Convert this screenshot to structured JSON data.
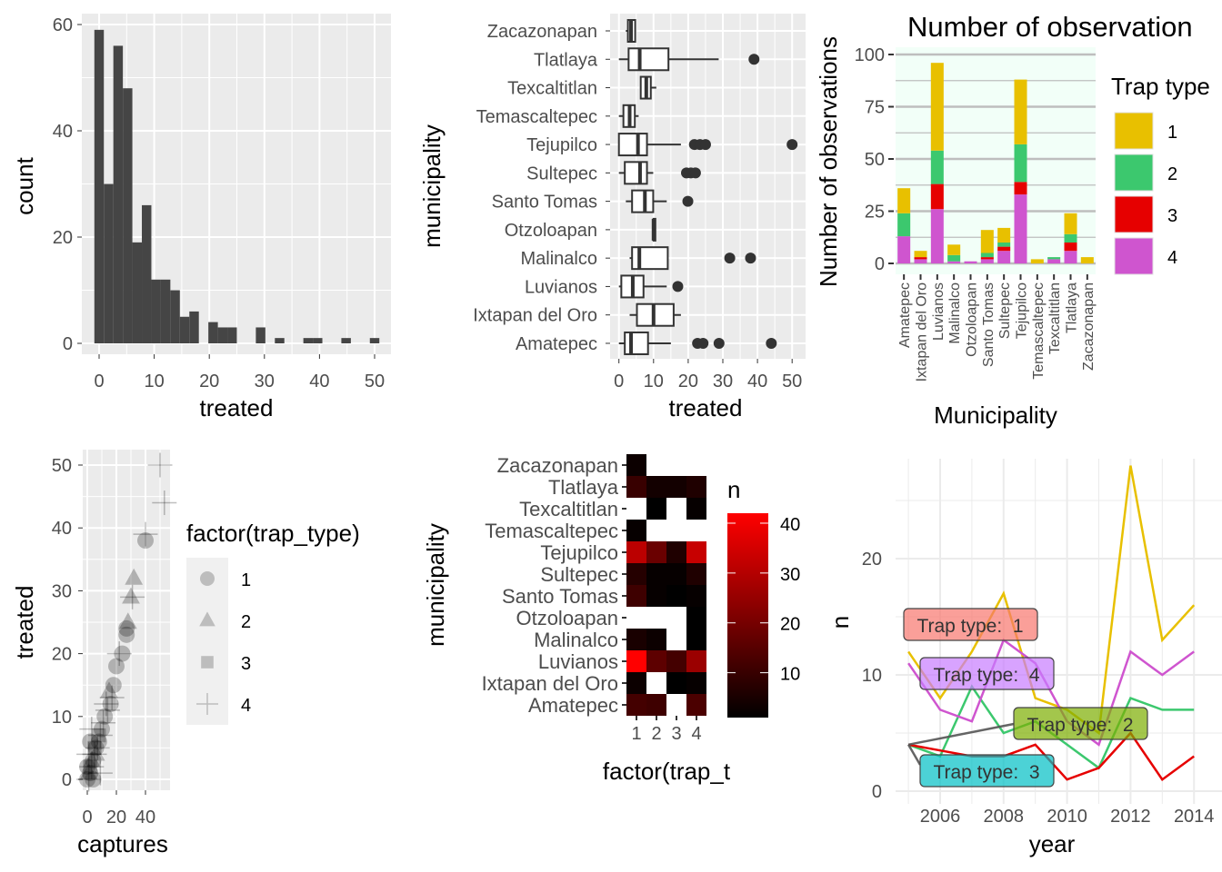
{
  "colors": {
    "panel_bg": "#EBEBEB",
    "grid": "#FFFFFF",
    "bar_fill": "#454545",
    "trap": {
      "1": "#E8C000",
      "2": "#3CC86E",
      "3": "#E60000",
      "4": "#CF55CF"
    },
    "label_fill": {
      "1": "#F8766D",
      "2": "#7CAE00",
      "3": "#00BFC4",
      "4": "#C77CFF"
    },
    "mint_bg": "#F2FFF8",
    "heat_low": "#000000",
    "heat_high": "#FF0000"
  },
  "chart_data": [
    {
      "type": "bar",
      "subtype": "histogram",
      "xlabel": "treated",
      "ylabel": "count",
      "bins": 30,
      "bin_centers_range": [
        0,
        50
      ],
      "counts": [
        59,
        30,
        56,
        48,
        19,
        26,
        12,
        12,
        10,
        5,
        6,
        0,
        4,
        3,
        3,
        0,
        0,
        3,
        0,
        1,
        0,
        0,
        1,
        1,
        0,
        0,
        1,
        0,
        0,
        1
      ],
      "xticks": [
        "0",
        "10",
        "20",
        "30",
        "40",
        "50"
      ],
      "yticks": [
        "0",
        "20",
        "40",
        "60"
      ],
      "xlim": [
        -2.5,
        53
      ],
      "ylim": [
        0,
        62
      ],
      "grid": true
    },
    {
      "type": "boxplot",
      "xlabel": "treated",
      "ylabel": "municipality",
      "xticks": [
        "0",
        "10",
        "20",
        "30",
        "40",
        "50"
      ],
      "xlim": [
        -2.5,
        53
      ],
      "grid": true,
      "groups": [
        {
          "name": "Zacazonapan",
          "stats": [
            2,
            2.6,
            3.5,
            4.7,
            4.7
          ],
          "outliers": []
        },
        {
          "name": "Tlatlaya",
          "stats": [
            0,
            2.8,
            6,
            14.3,
            28.8
          ],
          "outliers": [
            39
          ]
        },
        {
          "name": "Texcaltitlan",
          "stats": [
            6.1,
            6.3,
            7.9,
            9.2,
            10.8
          ],
          "outliers": []
        },
        {
          "name": "Temascaltepec",
          "stats": [
            0,
            1.3,
            3.1,
            4.6,
            5.7
          ],
          "outliers": []
        },
        {
          "name": "Tejupilco",
          "stats": [
            0,
            0,
            5.5,
            8.1,
            17.9
          ],
          "outliers": [
            21.8,
            23.4,
            25,
            50
          ]
        },
        {
          "name": "Sultepec",
          "stats": [
            0,
            1.7,
            6.1,
            8.1,
            9.9
          ],
          "outliers": [
            19.5,
            20.8,
            22.1
          ]
        },
        {
          "name": "Santo Tomas",
          "stats": [
            2,
            3.8,
            7.5,
            9.9,
            13.8
          ],
          "outliers": [
            19.9
          ]
        },
        {
          "name": "Otzoloapan",
          "stats": [
            10,
            10,
            10,
            10,
            10
          ],
          "outliers": []
        },
        {
          "name": "Malinalco",
          "stats": [
            3.1,
            3.8,
            5.9,
            14.1,
            14.1
          ],
          "outliers": [
            32,
            38
          ]
        },
        {
          "name": "Luvianos",
          "stats": [
            0,
            0.7,
            4,
            7.1,
            13.8
          ],
          "outliers": [
            17
          ]
        },
        {
          "name": "Ixtapan del Oro",
          "stats": [
            3.1,
            5.2,
            10,
            15.8,
            17.9
          ],
          "outliers": []
        },
        {
          "name": "Amatepec",
          "stats": [
            0,
            1.7,
            3.5,
            8.4,
            15
          ],
          "outliers": [
            22.7,
            24.3,
            28.9,
            44
          ]
        }
      ]
    },
    {
      "type": "bar",
      "subtype": "stacked",
      "title": "Number of observation",
      "xlabel": "Municipality",
      "ylabel": "Number of observations",
      "yticks": [
        "0",
        "25",
        "50",
        "75",
        "100"
      ],
      "ylim": [
        -5,
        105
      ],
      "legend_title": "Trap type",
      "legend_position": "right",
      "legend": [
        "1",
        "2",
        "3",
        "4"
      ],
      "categories": [
        "Amatepec",
        "Ixtapan del Oro",
        "Luvianos",
        "Malinalco",
        "Otzoloapan",
        "Santo Tomas",
        "Sultepec",
        "Tejupilco",
        "Temascaltepec",
        "Texcaltitlan",
        "Tlatlaya",
        "Zacazonapan"
      ],
      "series": [
        {
          "name": "1",
          "values": [
            12,
            3,
            42,
            5,
            0,
            11,
            7,
            31,
            2,
            0,
            10,
            3
          ]
        },
        {
          "name": "2",
          "values": [
            11,
            0,
            16,
            3,
            0,
            2,
            2,
            18,
            0,
            1,
            4,
            0
          ]
        },
        {
          "name": "3",
          "values": [
            0,
            1,
            12,
            0,
            0,
            1,
            2,
            6,
            0,
            0,
            4,
            0
          ]
        },
        {
          "name": "4",
          "values": [
            13,
            2,
            26,
            1,
            1,
            2,
            6,
            33,
            0,
            2,
            6,
            0
          ]
        }
      ]
    },
    {
      "type": "scatter",
      "xlabel": "captures",
      "ylabel": "treated",
      "xticks": [
        "0",
        "20",
        "40"
      ],
      "yticks": [
        "0",
        "10",
        "20",
        "30",
        "40",
        "50"
      ],
      "xlim": [
        -2,
        56
      ],
      "ylim": [
        -2.5,
        52.5
      ],
      "legend_title": "factor(trap_type)",
      "legend": [
        "1",
        "2",
        "3",
        "4"
      ],
      "shapes": {
        "1": "circle",
        "2": "triangle",
        "3": "square",
        "4": "plus"
      },
      "points": [
        [
          50,
          50,
          4
        ],
        [
          53,
          44,
          4
        ],
        [
          40,
          39,
          4
        ],
        [
          40,
          38,
          1
        ],
        [
          32,
          32,
          2
        ],
        [
          30,
          29,
          2
        ],
        [
          31,
          29,
          4
        ],
        [
          28,
          25,
          2
        ],
        [
          27,
          24,
          1
        ],
        [
          27,
          23,
          1
        ],
        [
          24,
          20,
          1
        ],
        [
          22,
          20,
          4
        ],
        [
          20,
          18,
          1
        ],
        [
          18,
          15,
          1
        ],
        [
          17,
          13,
          4
        ],
        [
          16,
          12,
          1
        ],
        [
          14,
          11,
          4
        ],
        [
          12,
          10,
          1
        ],
        [
          11,
          9,
          4
        ],
        [
          10,
          8,
          1
        ],
        [
          9,
          7,
          4
        ],
        [
          8,
          6,
          1
        ],
        [
          7,
          5,
          4
        ],
        [
          6,
          5,
          1
        ],
        [
          5,
          4,
          4
        ],
        [
          4,
          3,
          1
        ],
        [
          3,
          2,
          4
        ],
        [
          2,
          1,
          1
        ],
        [
          1,
          0,
          4
        ],
        [
          0,
          0,
          1
        ],
        [
          3,
          3,
          2
        ],
        [
          5,
          5,
          3
        ],
        [
          6,
          4,
          2
        ],
        [
          8,
          7,
          3
        ],
        [
          2,
          2,
          3
        ],
        [
          1,
          1,
          2
        ],
        [
          13,
          12,
          4
        ],
        [
          15,
          14,
          2
        ],
        [
          9,
          1,
          4
        ],
        [
          4,
          0,
          1
        ],
        [
          1,
          4,
          4
        ],
        [
          2,
          6,
          1
        ],
        [
          3,
          8,
          4
        ],
        [
          0,
          2,
          1
        ]
      ]
    },
    {
      "type": "heatmap",
      "xlabel": "factor(trap_t",
      "ylabel": "municipality",
      "xticks": [
        "1",
        "2",
        "3",
        "4"
      ],
      "rows": [
        "Zacazonapan",
        "Tlatlaya",
        "Texcaltitlan",
        "Temascaltepec",
        "Tejupilco",
        "Sultepec",
        "Santo Tomas",
        "Otzoloapan",
        "Malinalco",
        "Luvianos",
        "Ixtapan del Oro",
        "Amatepec"
      ],
      "values": [
        [
          3,
          0,
          0,
          0
        ],
        [
          10,
          4,
          4,
          6
        ],
        [
          0,
          1,
          0,
          2
        ],
        [
          2,
          0,
          0,
          0
        ],
        [
          31,
          18,
          6,
          33
        ],
        [
          7,
          2,
          2,
          6
        ],
        [
          11,
          2,
          1,
          2
        ],
        [
          0,
          0,
          0,
          1
        ],
        [
          5,
          3,
          0,
          1
        ],
        [
          42,
          16,
          12,
          26
        ],
        [
          3,
          0,
          1,
          2
        ],
        [
          12,
          11,
          0,
          13
        ]
      ],
      "legend_title": "n",
      "legend_ticks": [
        "10",
        "20",
        "30",
        "40"
      ],
      "range": [
        1,
        42
      ]
    },
    {
      "type": "line",
      "xlabel": "year",
      "ylabel": "n",
      "xticks": [
        "2006",
        "2008",
        "2010",
        "2012",
        "2014"
      ],
      "yticks": [
        "0",
        "10",
        "20"
      ],
      "x": [
        2005,
        2006,
        2007,
        2008,
        2009,
        2010,
        2011,
        2012,
        2013,
        2014
      ],
      "series": [
        {
          "name": "Trap type:  1",
          "key": "1",
          "values": [
            12,
            8,
            12,
            17,
            8,
            7,
            5,
            28,
            13,
            16
          ]
        },
        {
          "name": "Trap type:  2",
          "key": "2",
          "values": [
            4,
            3,
            9,
            5,
            6,
            4,
            2,
            8,
            7,
            7
          ]
        },
        {
          "name": "Trap type:  3",
          "key": "3",
          "values": [
            4,
            3.5,
            3,
            3,
            4,
            1,
            2,
            5,
            1,
            3
          ]
        },
        {
          "name": "Trap type:  4",
          "key": "4",
          "values": [
            11,
            7,
            6,
            13,
            11,
            6,
            4,
            12,
            10,
            12
          ]
        }
      ]
    }
  ]
}
